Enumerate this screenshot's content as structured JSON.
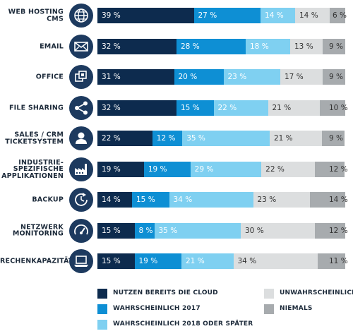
{
  "chart_data": {
    "type": "bar",
    "orientation": "horizontal-stacked-100",
    "categories": [
      [
        "WEB HOSTING",
        "CMS"
      ],
      [
        "EMAIL"
      ],
      [
        "OFFICE"
      ],
      [
        "FILE SHARING"
      ],
      [
        "SALES / CRM",
        "TICKETSYSTEM"
      ],
      [
        "INDUSTRIE-",
        "SPEZIFISCHE",
        "APPLIKATIONEN"
      ],
      [
        "BACKUP"
      ],
      [
        "NETZWERK",
        "MONITORING"
      ],
      [
        "RECHENKAPAZITÄT"
      ]
    ],
    "icons": [
      "globe-icon",
      "mail-icon",
      "office-icon",
      "share-icon",
      "user-icon",
      "factory-icon",
      "backup-clock-icon",
      "gauge-icon",
      "laptop-icon"
    ],
    "series": [
      {
        "name": "NUTZEN BEREITS DIE CLOUD",
        "color": "#0d2b4e",
        "text_color": "#ffffff",
        "values": [
          39,
          32,
          31,
          32,
          22,
          19,
          14,
          15,
          15
        ]
      },
      {
        "name": "WAHRSCHEINLICH 2017",
        "color": "#0e8fd4",
        "text_color": "#ffffff",
        "values": [
          27,
          28,
          20,
          15,
          12,
          19,
          15,
          8,
          19
        ]
      },
      {
        "name": "WAHRSCHEINLICH 2018 ODER SPÄTER",
        "color": "#7fd0f1",
        "text_color": "#ffffff",
        "values": [
          14,
          18,
          23,
          22,
          35,
          29,
          34,
          35,
          21
        ]
      },
      {
        "name": "UNWAHRSCHEINLICH",
        "color": "#dcdedf",
        "text_color": "#333333",
        "values": [
          14,
          13,
          17,
          21,
          21,
          22,
          23,
          30,
          34
        ]
      },
      {
        "name": "NIEMALS",
        "color": "#a7abae",
        "text_color": "#333333",
        "values": [
          6,
          9,
          9,
          10,
          9,
          12,
          14,
          12,
          11
        ]
      }
    ],
    "label_suffix": " %",
    "xlim": [
      0,
      100
    ],
    "legend_position": "bottom"
  }
}
